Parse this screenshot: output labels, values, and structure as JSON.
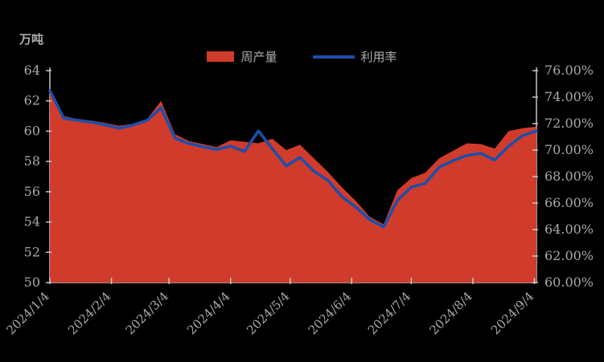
{
  "title_unit": "万吨",
  "legend": {
    "series1": "周产量",
    "series2": "利用率"
  },
  "colors": {
    "background": "#000000",
    "production_fill": "#D13B2B",
    "utilization_line": "#1E4FA8",
    "axis": "#C8C8C8",
    "label": "#A9A9A9"
  },
  "chart_data": {
    "type": "area+line",
    "title": "",
    "xlabel": "",
    "ylabel_left": "万吨",
    "ylabel_right": "",
    "background": "black",
    "legend_position": "top-center",
    "x": [
      "2024/1/4",
      "2024/1/11",
      "2024/1/18",
      "2024/1/25",
      "2024/2/1",
      "2024/2/8",
      "2024/2/15",
      "2024/2/22",
      "2024/2/29",
      "2024/3/7",
      "2024/3/14",
      "2024/3/21",
      "2024/3/28",
      "2024/4/4",
      "2024/4/11",
      "2024/4/18",
      "2024/4/25",
      "2024/5/2",
      "2024/5/9",
      "2024/5/16",
      "2024/5/23",
      "2024/5/30",
      "2024/6/6",
      "2024/6/13",
      "2024/6/20",
      "2024/6/27",
      "2024/7/4",
      "2024/7/11",
      "2024/7/18",
      "2024/7/25",
      "2024/8/1",
      "2024/8/8",
      "2024/8/15",
      "2024/8/22",
      "2024/8/29",
      "2024/9/5"
    ],
    "series": [
      {
        "name": "周产量",
        "type": "area",
        "axis": "left",
        "color": "#D13B2B",
        "values": [
          62.8,
          61.0,
          60.8,
          60.7,
          60.55,
          60.35,
          60.5,
          60.8,
          62.0,
          59.8,
          59.35,
          59.15,
          58.95,
          59.4,
          59.3,
          59.2,
          59.5,
          58.75,
          59.1,
          58.2,
          57.3,
          56.3,
          55.4,
          54.35,
          53.85,
          56.1,
          56.9,
          57.25,
          58.2,
          58.7,
          59.2,
          59.15,
          58.85,
          60.0,
          60.2,
          60.3
        ]
      },
      {
        "name": "利用率",
        "type": "line",
        "axis": "right",
        "color": "#1E4FA8",
        "values": [
          74.5,
          72.4,
          72.25,
          72.1,
          71.9,
          71.65,
          71.9,
          72.25,
          73.2,
          70.9,
          70.5,
          70.25,
          70.05,
          70.3,
          69.9,
          71.45,
          70.1,
          68.8,
          69.45,
          68.4,
          67.7,
          66.5,
          65.7,
          64.75,
          64.2,
          66.2,
          67.2,
          67.5,
          68.7,
          69.2,
          69.6,
          69.75,
          69.25,
          70.3,
          71.1,
          71.45
        ]
      }
    ],
    "x_ticks": [
      "2024/1/4",
      "2024/2/4",
      "2024/3/4",
      "2024/4/4",
      "2024/5/4",
      "2024/6/4",
      "2024/7/4",
      "2024/8/4",
      "2024/9/4"
    ],
    "y_left": {
      "min": 50,
      "max": 64,
      "step": 2
    },
    "y_right": {
      "min": 60,
      "max": 76,
      "step": 2,
      "suffix": "%",
      "decimals": 2
    },
    "grid": false
  }
}
